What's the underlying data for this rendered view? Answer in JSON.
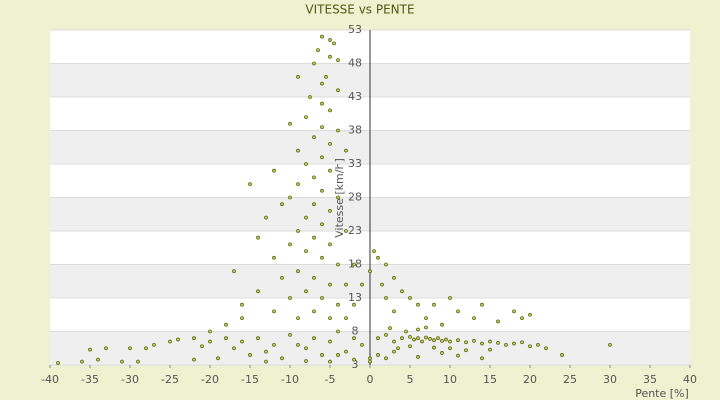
{
  "chart_data": {
    "type": "scatter",
    "title": "VITESSE vs PENTE",
    "x_label": "Pente [%]",
    "y_label": "Vitesse [km/h]",
    "xlim": [
      -40,
      40
    ],
    "xticks": [
      -40,
      -35,
      -30,
      -25,
      -20,
      -15,
      -10,
      -5,
      0,
      5,
      10,
      15,
      20,
      25,
      30,
      35,
      40
    ],
    "ylim": [
      3,
      53
    ],
    "yticks": [
      3,
      8,
      13,
      18,
      23,
      28,
      33,
      38,
      43,
      48,
      53
    ],
    "grid": true,
    "color": "#5a6a10",
    "x": [
      -6,
      -5,
      -4.5,
      -6.5,
      -5,
      -7,
      -4,
      -9,
      -5.5,
      -6,
      -4,
      -7.5,
      -6,
      -5,
      -8,
      -10,
      -6,
      -4,
      -7,
      -5,
      -9,
      -3,
      -6,
      -8,
      -12,
      -5,
      -7,
      -9,
      -15,
      -6,
      -10,
      -4,
      -11,
      -7,
      -5,
      -8,
      -13,
      -6,
      -9,
      -3,
      -14,
      -7,
      -10,
      -5,
      -8,
      -12,
      -6,
      -4,
      -2,
      -9,
      -17,
      -7,
      -11,
      -5,
      -3,
      -1,
      -14,
      -8,
      -6,
      -10,
      -4,
      -2,
      -16,
      -12,
      -7,
      -9,
      -5,
      -3,
      0.5,
      1,
      2,
      0,
      3,
      1.5,
      4,
      2,
      5,
      6,
      8,
      10,
      11,
      14,
      18,
      19,
      3,
      7,
      13,
      16,
      9,
      20,
      1,
      2,
      3,
      4,
      5,
      5.5,
      6,
      6.5,
      7,
      7.5,
      8,
      8.5,
      9,
      9.5,
      10,
      11,
      12,
      13,
      14,
      15,
      16,
      17,
      18,
      19,
      20,
      21,
      22,
      2.5,
      4.5,
      6,
      7,
      3.5,
      5,
      8,
      10,
      12,
      15,
      24,
      30,
      1,
      2,
      3,
      6,
      9,
      11,
      14,
      0,
      0,
      -1,
      -2,
      -3,
      -4,
      -5,
      -6,
      -7,
      -8,
      -9,
      -10,
      -11,
      -12,
      -13,
      -14,
      -15,
      -16,
      -17,
      -18,
      -19,
      -20,
      -21,
      -22,
      -24,
      -25,
      -27,
      -28,
      -29,
      -30,
      -31,
      -33,
      -34,
      -35,
      -36,
      -39,
      -13,
      -5,
      -8,
      -2,
      -18,
      -16,
      -20,
      -22,
      -4
    ],
    "values": [
      52,
      51.5,
      51,
      50,
      49,
      48,
      48.5,
      46,
      46,
      45,
      44,
      43,
      42,
      41,
      40,
      39,
      38.5,
      38,
      37,
      36,
      35,
      35,
      34,
      33,
      32,
      32,
      31,
      30,
      30,
      29,
      28,
      28,
      27,
      27,
      26,
      25,
      25,
      24,
      23,
      23,
      22,
      22,
      21,
      21,
      20,
      19,
      19,
      18,
      18,
      17,
      17,
      16,
      16,
      15,
      15,
      15,
      14,
      14,
      13,
      13,
      12,
      12,
      12,
      11,
      11,
      10,
      10,
      10,
      20,
      19,
      18,
      17,
      16,
      15,
      14,
      13,
      13,
      12,
      12,
      13,
      11,
      12,
      11,
      10,
      11,
      10,
      10,
      9.5,
      9,
      10.5,
      7,
      7.5,
      6.5,
      7,
      7.2,
      6.8,
      7,
      6.5,
      7.1,
      6.9,
      6.7,
      7,
      6.6,
      6.8,
      6.5,
      6.7,
      6.4,
      6.6,
      6.2,
      6.5,
      6.3,
      6,
      6.2,
      6.4,
      5.8,
      6,
      5.5,
      8.5,
      8,
      8.3,
      8.6,
      5.5,
      5.8,
      5.6,
      5.5,
      5.2,
      5.3,
      4.5,
      6,
      4.5,
      4,
      5,
      4.2,
      4.8,
      4.4,
      4,
      4,
      3.5,
      6,
      7,
      5,
      8,
      6.5,
      4.5,
      7,
      5.5,
      6,
      7.5,
      4,
      6,
      5,
      7,
      4.5,
      6.5,
      5.5,
      7,
      4,
      6.5,
      5.8,
      3.8,
      6.8,
      6.5,
      6,
      5.5,
      3.5,
      5.5,
      3.5,
      5.5,
      3.8,
      5.3,
      3.5,
      3.3,
      3.5,
      3.5,
      3.6,
      3.8,
      9,
      10,
      8,
      7,
      4.5
    ]
  }
}
